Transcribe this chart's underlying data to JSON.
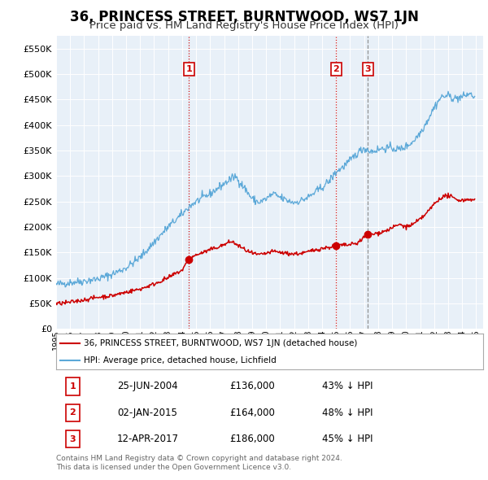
{
  "title": "36, PRINCESS STREET, BURNTWOOD, WS7 1JN",
  "subtitle": "Price paid vs. HM Land Registry's House Price Index (HPI)",
  "legend_line1": "36, PRINCESS STREET, BURNTWOOD, WS7 1JN (detached house)",
  "legend_line2": "HPI: Average price, detached house, Lichfield",
  "footer1": "Contains HM Land Registry data © Crown copyright and database right 2024.",
  "footer2": "This data is licensed under the Open Government Licence v3.0.",
  "transaction_display": [
    {
      "label": "1",
      "date_str": "25-JUN-2004",
      "price_str": "£136,000",
      "pct_str": "43% ↓ HPI",
      "t": 2004.479,
      "price": 136000,
      "vline_color": "#cc0000",
      "vline_style": "dotted"
    },
    {
      "label": "2",
      "date_str": "02-JAN-2015",
      "price_str": "£164,000",
      "pct_str": "48% ↓ HPI",
      "t": 2015.003,
      "price": 164000,
      "vline_color": "#cc0000",
      "vline_style": "dotted"
    },
    {
      "label": "3",
      "date_str": "12-APR-2017",
      "price_str": "£186,000",
      "pct_str": "45% ↓ HPI",
      "t": 2017.276,
      "price": 186000,
      "vline_color": "#888888",
      "vline_style": "dashed"
    }
  ],
  "hpi_color": "#5ba8d8",
  "price_color": "#cc0000",
  "marker_color": "#cc0000",
  "background_color": "#e8f0f8",
  "grid_color": "#ffffff",
  "ylim": [
    0,
    575000
  ],
  "yticks": [
    0,
    50000,
    100000,
    150000,
    200000,
    250000,
    300000,
    350000,
    400000,
    450000,
    500000,
    550000
  ],
  "xlim_start": 1995.0,
  "xlim_end": 2025.5,
  "title_fontsize": 12,
  "subtitle_fontsize": 9.5
}
